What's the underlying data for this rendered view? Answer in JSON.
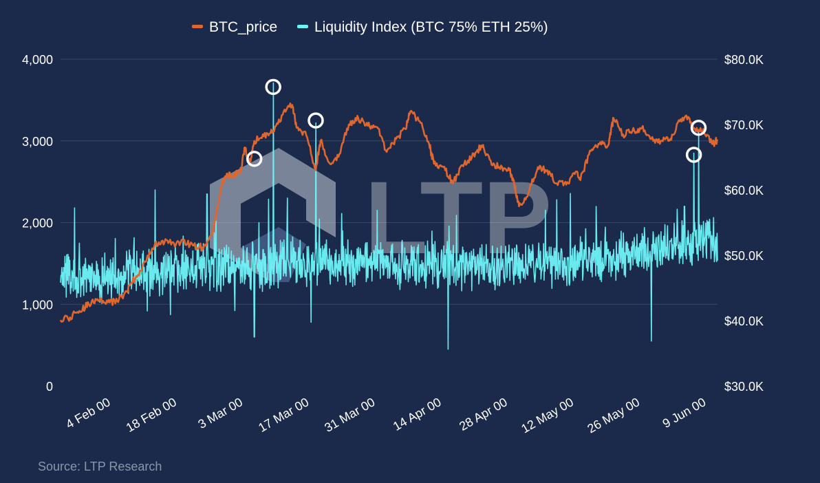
{
  "chart_data": {
    "type": "line",
    "title": "",
    "xlabel": "",
    "ylabel_left": "",
    "ylabel_right": "",
    "x_range": [
      "2024-01-25",
      "2024-06-12"
    ],
    "ylim_left": [
      0,
      4000
    ],
    "ylim_right": [
      30000,
      80000
    ],
    "y_ticks_left": [
      "0",
      "1,000",
      "2,000",
      "3,000",
      "4,000"
    ],
    "y_ticks_right": [
      "$30.0K",
      "$40.0K",
      "$50.0K",
      "$60.0K",
      "$70.0K",
      "$80.0K"
    ],
    "x_ticks": [
      {
        "label": "4 Feb 00",
        "date": "2024-02-04"
      },
      {
        "label": "18 Feb 00",
        "date": "2024-02-18"
      },
      {
        "label": "3 Mar 00",
        "date": "2024-03-03"
      },
      {
        "label": "17 Mar 00",
        "date": "2024-03-17"
      },
      {
        "label": "31 Mar 00",
        "date": "2024-03-31"
      },
      {
        "label": "14 Apr 00",
        "date": "2024-04-14"
      },
      {
        "label": "28 Apr 00",
        "date": "2024-04-28"
      },
      {
        "label": "12 May 00",
        "date": "2024-05-12"
      },
      {
        "label": "26 May 00",
        "date": "2024-05-26"
      },
      {
        "label": "9 Jun 00",
        "date": "2024-06-09"
      }
    ],
    "grid": true,
    "legend_position": "top-center",
    "series": [
      {
        "name": "BTC_price",
        "axis": "right",
        "color": "#e0662e",
        "points": [
          [
            "2024-01-25",
            40100
          ],
          [
            "2024-01-27",
            40500
          ],
          [
            "2024-01-29",
            41500
          ],
          [
            "2024-01-31",
            42500
          ],
          [
            "2024-02-02",
            43000
          ],
          [
            "2024-02-04",
            42800
          ],
          [
            "2024-02-06",
            43000
          ],
          [
            "2024-02-08",
            44500
          ],
          [
            "2024-02-10",
            46800
          ],
          [
            "2024-02-12",
            49000
          ],
          [
            "2024-02-14",
            51800
          ],
          [
            "2024-02-16",
            52000
          ],
          [
            "2024-02-18",
            51800
          ],
          [
            "2024-02-20",
            52200
          ],
          [
            "2024-02-22",
            51500
          ],
          [
            "2024-02-24",
            51200
          ],
          [
            "2024-02-26",
            53000
          ],
          [
            "2024-02-27",
            56500
          ],
          [
            "2024-02-28",
            60500
          ],
          [
            "2024-02-29",
            62000
          ],
          [
            "2024-03-01",
            62300
          ],
          [
            "2024-03-03",
            62500
          ],
          [
            "2024-03-04",
            66500
          ],
          [
            "2024-03-05",
            64000
          ],
          [
            "2024-03-06",
            67500
          ],
          [
            "2024-03-08",
            68200
          ],
          [
            "2024-03-10",
            69000
          ],
          [
            "2024-03-12",
            71500
          ],
          [
            "2024-03-14",
            73000
          ],
          [
            "2024-03-15",
            69500
          ],
          [
            "2024-03-17",
            68300
          ],
          [
            "2024-03-19",
            63000
          ],
          [
            "2024-03-20",
            67500
          ],
          [
            "2024-03-22",
            64000
          ],
          [
            "2024-03-24",
            65500
          ],
          [
            "2024-03-26",
            70000
          ],
          [
            "2024-03-28",
            71000
          ],
          [
            "2024-03-30",
            69800
          ],
          [
            "2024-04-01",
            69600
          ],
          [
            "2024-04-03",
            65800
          ],
          [
            "2024-04-05",
            67800
          ],
          [
            "2024-04-07",
            69300
          ],
          [
            "2024-04-08",
            72000
          ],
          [
            "2024-04-10",
            70500
          ],
          [
            "2024-04-12",
            67000
          ],
          [
            "2024-04-13",
            64000
          ],
          [
            "2024-04-15",
            63500
          ],
          [
            "2024-04-17",
            61000
          ],
          [
            "2024-04-19",
            63800
          ],
          [
            "2024-04-21",
            64900
          ],
          [
            "2024-04-23",
            66800
          ],
          [
            "2024-04-25",
            64500
          ],
          [
            "2024-04-27",
            63200
          ],
          [
            "2024-04-29",
            63000
          ],
          [
            "2024-04-30",
            60800
          ],
          [
            "2024-05-01",
            57500
          ],
          [
            "2024-05-03",
            59500
          ],
          [
            "2024-05-05",
            63500
          ],
          [
            "2024-05-07",
            63000
          ],
          [
            "2024-05-09",
            61000
          ],
          [
            "2024-05-11",
            60800
          ],
          [
            "2024-05-13",
            62800
          ],
          [
            "2024-05-14",
            61500
          ],
          [
            "2024-05-16",
            66000
          ],
          [
            "2024-05-18",
            67000
          ],
          [
            "2024-05-20",
            67000
          ],
          [
            "2024-05-21",
            71000
          ],
          [
            "2024-05-23",
            68500
          ],
          [
            "2024-05-25",
            69000
          ],
          [
            "2024-05-27",
            69500
          ],
          [
            "2024-05-29",
            67800
          ],
          [
            "2024-05-31",
            67500
          ],
          [
            "2024-06-02",
            67800
          ],
          [
            "2024-06-04",
            70500
          ],
          [
            "2024-06-06",
            71000
          ],
          [
            "2024-06-07",
            69500
          ],
          [
            "2024-06-09",
            69300
          ],
          [
            "2024-06-11",
            67000
          ],
          [
            "2024-06-12",
            67700
          ]
        ]
      },
      {
        "name": "Liquidity Index (BTC 75% ETH 25%)",
        "axis": "left",
        "color": "#6ff3f8",
        "baseline": [
          [
            "2024-01-25",
            1350
          ],
          [
            "2024-02-04",
            1320
          ],
          [
            "2024-02-18",
            1430
          ],
          [
            "2024-03-03",
            1470
          ],
          [
            "2024-03-17",
            1520
          ],
          [
            "2024-03-31",
            1500
          ],
          [
            "2024-04-14",
            1480
          ],
          [
            "2024-04-28",
            1470
          ],
          [
            "2024-05-12",
            1520
          ],
          [
            "2024-05-26",
            1640
          ],
          [
            "2024-06-09",
            1800
          ],
          [
            "2024-06-12",
            1780
          ]
        ],
        "spikes": [
          [
            "2024-01-28",
            2180
          ],
          [
            "2024-02-14",
            2400
          ],
          [
            "2024-02-25",
            2350
          ],
          [
            "2024-03-06",
            600
          ],
          [
            "2024-03-10",
            3710
          ],
          [
            "2024-03-13",
            2300
          ],
          [
            "2024-03-19",
            3220
          ],
          [
            "2024-03-18",
            780
          ],
          [
            "2024-04-16",
            450
          ],
          [
            "2024-04-01",
            2150
          ],
          [
            "2024-05-09",
            2280
          ],
          [
            "2024-05-29",
            550
          ],
          [
            "2024-06-05",
            2200
          ],
          [
            "2024-06-07",
            2850
          ],
          [
            "2024-06-08",
            3120
          ]
        ]
      }
    ],
    "annotations": [
      {
        "type": "circle",
        "x": "2024-03-06",
        "y": 2780,
        "axis": "left"
      },
      {
        "type": "circle",
        "x": "2024-03-10",
        "y": 3660,
        "axis": "left"
      },
      {
        "type": "circle",
        "x": "2024-03-19",
        "y": 3250,
        "axis": "left"
      },
      {
        "type": "circle",
        "x": "2024-06-07",
        "y": 2830,
        "axis": "left"
      },
      {
        "type": "circle",
        "x": "2024-06-08",
        "y": 3160,
        "axis": "left"
      }
    ]
  },
  "source": "Source: LTP Research",
  "watermark": "LTP",
  "colors": {
    "background": "#1b2a4a",
    "grid": "#3a4763",
    "btc": "#e0662e",
    "liquidity": "#6ff3f8",
    "annotation": "#ffffff"
  }
}
